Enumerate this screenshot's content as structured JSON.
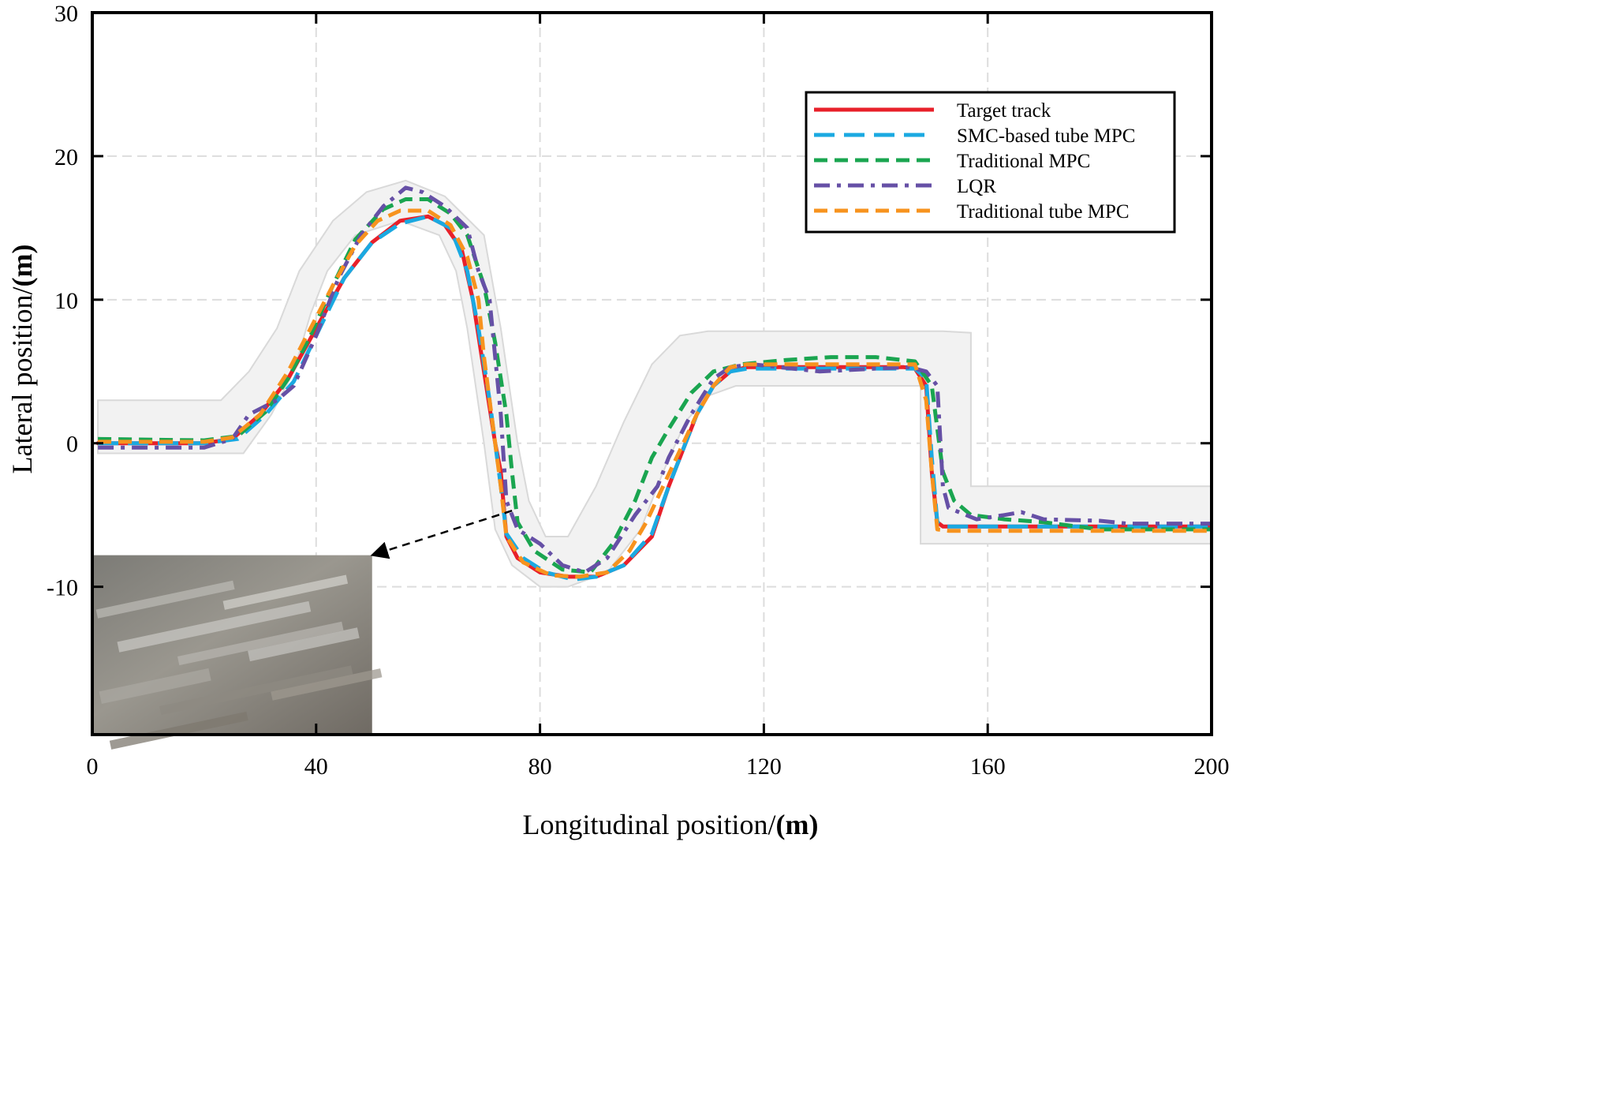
{
  "chart_data": {
    "type": "line",
    "title": "",
    "xlabel": "Longitudinal position/",
    "xlabel_unit": "(m)",
    "ylabel": "Lateral position/",
    "ylabel_unit": "(m)",
    "xlim": [
      0,
      200
    ],
    "ylim": [
      -20.3,
      30
    ],
    "xticks": [
      0,
      40,
      80,
      120,
      160,
      200
    ],
    "yticks": [
      -10,
      0,
      10,
      20,
      30
    ],
    "xtick_labels": [
      "0",
      "40",
      "80",
      "120",
      "160",
      "200"
    ],
    "ytick_labels": [
      "-10",
      "0",
      "10",
      "20",
      "30"
    ],
    "grid": true,
    "legend_position": "top-right",
    "road_band": {
      "color": "#f2f2f2",
      "edge_color": "#d9d9d9",
      "upper": [
        [
          1,
          3
        ],
        [
          23,
          3
        ],
        [
          28,
          5
        ],
        [
          33,
          8
        ],
        [
          37,
          12
        ],
        [
          43,
          15.5
        ],
        [
          49,
          17.5
        ],
        [
          56,
          18.3
        ],
        [
          63,
          17.2
        ],
        [
          70,
          14.5
        ],
        [
          73,
          8
        ],
        [
          76,
          0
        ],
        [
          78,
          -4
        ],
        [
          81,
          -6.5
        ],
        [
          85,
          -6.5
        ],
        [
          90,
          -3
        ],
        [
          95,
          1.5
        ],
        [
          100,
          5.5
        ],
        [
          105,
          7.5
        ],
        [
          110,
          7.8
        ],
        [
          152,
          7.8
        ],
        [
          157,
          7.7
        ],
        [
          157,
          -3
        ],
        [
          180,
          -3
        ],
        [
          209,
          -3
        ]
      ],
      "lower": [
        [
          1,
          -0.7
        ],
        [
          27,
          -0.7
        ],
        [
          32,
          2
        ],
        [
          36,
          5
        ],
        [
          39,
          9
        ],
        [
          42,
          12
        ],
        [
          47,
          14.5
        ],
        [
          55,
          15.5
        ],
        [
          62,
          14.5
        ],
        [
          65,
          12
        ],
        [
          67,
          8
        ],
        [
          70,
          0
        ],
        [
          72,
          -6
        ],
        [
          75,
          -8.5
        ],
        [
          80,
          -10
        ],
        [
          85,
          -10
        ],
        [
          92,
          -9
        ],
        [
          98,
          -6
        ],
        [
          102,
          -2
        ],
        [
          106,
          1.5
        ],
        [
          110,
          3.3
        ],
        [
          115,
          4
        ],
        [
          148,
          4
        ],
        [
          148,
          -7
        ],
        [
          180,
          -7
        ],
        [
          209,
          -7
        ]
      ]
    },
    "series": [
      {
        "name": "Target track",
        "color": "#e8202a",
        "dash": "solid",
        "points": [
          [
            1,
            0
          ],
          [
            20,
            0
          ],
          [
            25,
            0.3
          ],
          [
            30,
            2
          ],
          [
            35,
            4.5
          ],
          [
            40,
            8
          ],
          [
            45,
            11.5
          ],
          [
            50,
            14
          ],
          [
            55,
            15.5
          ],
          [
            60,
            15.8
          ],
          [
            63,
            15.2
          ],
          [
            66,
            13.5
          ],
          [
            68,
            10
          ],
          [
            70,
            5
          ],
          [
            72,
            0
          ],
          [
            73,
            -2
          ],
          [
            74,
            -6.5
          ],
          [
            76,
            -8
          ],
          [
            80,
            -9
          ],
          [
            85,
            -9.3
          ],
          [
            90,
            -9.3
          ],
          [
            95,
            -8.5
          ],
          [
            100,
            -6.5
          ],
          [
            103,
            -3
          ],
          [
            106,
            0
          ],
          [
            108,
            2
          ],
          [
            111,
            4
          ],
          [
            114,
            5
          ],
          [
            117,
            5.3
          ],
          [
            140,
            5.3
          ],
          [
            145,
            5.3
          ],
          [
            147,
            5.2
          ],
          [
            149,
            4
          ],
          [
            150,
            -2
          ],
          [
            151,
            -5.5
          ],
          [
            152,
            -5.8
          ],
          [
            170,
            -5.8
          ],
          [
            209,
            -5.8
          ]
        ]
      },
      {
        "name": "SMC-based tube MPC",
        "color": "#1aa9e1",
        "dash": "long",
        "points": [
          [
            1,
            0
          ],
          [
            20,
            0
          ],
          [
            26,
            0.3
          ],
          [
            31,
            2
          ],
          [
            36,
            4.3
          ],
          [
            40,
            7.5
          ],
          [
            45,
            11.5
          ],
          [
            50,
            14
          ],
          [
            55,
            15.3
          ],
          [
            60,
            15.8
          ],
          [
            64,
            15
          ],
          [
            67,
            12
          ],
          [
            69,
            8
          ],
          [
            71,
            3
          ],
          [
            72,
            0
          ],
          [
            73,
            -3
          ],
          [
            74,
            -6.3
          ],
          [
            77,
            -8
          ],
          [
            81,
            -9
          ],
          [
            86,
            -9.5
          ],
          [
            90,
            -9.3
          ],
          [
            95,
            -8.5
          ],
          [
            100,
            -6.3
          ],
          [
            103,
            -3
          ],
          [
            106,
            0
          ],
          [
            108,
            2
          ],
          [
            111,
            4
          ],
          [
            114,
            5
          ],
          [
            117,
            5.2
          ],
          [
            147,
            5.2
          ],
          [
            149,
            4.5
          ],
          [
            150,
            -1
          ],
          [
            151,
            -5.5
          ],
          [
            152,
            -5.8
          ],
          [
            209,
            -5.8
          ]
        ]
      },
      {
        "name": "Traditional MPC",
        "color": "#1aa550",
        "dash": "medium",
        "points": [
          [
            1,
            0.3
          ],
          [
            20,
            0.2
          ],
          [
            26,
            0.5
          ],
          [
            31,
            2.2
          ],
          [
            35,
            4.5
          ],
          [
            39,
            7.5
          ],
          [
            43,
            11
          ],
          [
            47,
            14.2
          ],
          [
            52,
            16.3
          ],
          [
            56,
            17
          ],
          [
            60,
            17
          ],
          [
            64,
            16
          ],
          [
            67,
            14.5
          ],
          [
            70,
            11
          ],
          [
            72,
            7
          ],
          [
            74,
            2
          ],
          [
            75,
            -2
          ],
          [
            76,
            -5.5
          ],
          [
            79,
            -7.5
          ],
          [
            84,
            -8.8
          ],
          [
            89,
            -9
          ],
          [
            93,
            -7
          ],
          [
            97,
            -4
          ],
          [
            100,
            -1
          ],
          [
            103,
            1
          ],
          [
            107,
            3.5
          ],
          [
            111,
            5
          ],
          [
            116,
            5.5
          ],
          [
            124,
            5.8
          ],
          [
            132,
            6
          ],
          [
            140,
            6
          ],
          [
            147,
            5.7
          ],
          [
            150,
            4
          ],
          [
            152,
            -2
          ],
          [
            154,
            -4
          ],
          [
            157,
            -5
          ],
          [
            163,
            -5.3
          ],
          [
            170,
            -5.5
          ],
          [
            180,
            -6
          ],
          [
            209,
            -6
          ]
        ]
      },
      {
        "name": "LQR",
        "color": "#6650a6",
        "dash": "dashdot",
        "points": [
          [
            1,
            -0.3
          ],
          [
            15,
            -0.3
          ],
          [
            20,
            -0.3
          ],
          [
            25,
            0.3
          ],
          [
            28,
            2
          ],
          [
            33,
            3
          ],
          [
            36,
            4
          ],
          [
            40,
            7.5
          ],
          [
            44,
            11.5
          ],
          [
            48,
            14.5
          ],
          [
            52,
            16.5
          ],
          [
            56,
            17.8
          ],
          [
            59,
            17.5
          ],
          [
            63,
            16.5
          ],
          [
            67,
            15
          ],
          [
            69,
            12
          ],
          [
            71,
            10
          ],
          [
            72,
            6
          ],
          [
            73,
            2
          ],
          [
            74,
            -4
          ],
          [
            76,
            -6
          ],
          [
            80,
            -7
          ],
          [
            84,
            -8.5
          ],
          [
            88,
            -9
          ],
          [
            92,
            -8
          ],
          [
            97,
            -5
          ],
          [
            101,
            -3
          ],
          [
            103,
            -1
          ],
          [
            107,
            2
          ],
          [
            111,
            4.5
          ],
          [
            114,
            5.3
          ],
          [
            118,
            5.5
          ],
          [
            130,
            5
          ],
          [
            140,
            5.2
          ],
          [
            146,
            5.3
          ],
          [
            149,
            5
          ],
          [
            151,
            4
          ],
          [
            152,
            -3
          ],
          [
            153,
            -4.5
          ],
          [
            158,
            -5.3
          ],
          [
            163,
            -5
          ],
          [
            166,
            -4.8
          ],
          [
            170,
            -5.3
          ],
          [
            180,
            -5.4
          ],
          [
            185,
            -5.6
          ],
          [
            209,
            -5.6
          ]
        ]
      },
      {
        "name": "Traditional tube MPC",
        "color": "#f7931e",
        "dash": "medium",
        "points": [
          [
            1,
            0.1
          ],
          [
            20,
            0.1
          ],
          [
            25,
            0.4
          ],
          [
            30,
            2
          ],
          [
            35,
            5
          ],
          [
            39,
            8
          ],
          [
            43,
            11
          ],
          [
            47,
            13.8
          ],
          [
            51,
            15.5
          ],
          [
            55,
            16.2
          ],
          [
            60,
            16.2
          ],
          [
            64,
            15.2
          ],
          [
            67,
            13
          ],
          [
            69,
            10
          ],
          [
            70,
            6
          ],
          [
            71,
            3
          ],
          [
            72,
            0
          ],
          [
            73,
            -3
          ],
          [
            74,
            -6.5
          ],
          [
            77,
            -8.3
          ],
          [
            82,
            -9.2
          ],
          [
            87,
            -9.3
          ],
          [
            92,
            -9
          ],
          [
            96,
            -7.5
          ],
          [
            99,
            -5.5
          ],
          [
            102,
            -3
          ],
          [
            105,
            -0.5
          ],
          [
            108,
            2
          ],
          [
            111,
            4
          ],
          [
            114,
            5.3
          ],
          [
            117,
            5.5
          ],
          [
            147,
            5.5
          ],
          [
            149,
            3
          ],
          [
            150,
            -2
          ],
          [
            151,
            -6
          ],
          [
            153,
            -6.1
          ],
          [
            209,
            -6.1
          ]
        ]
      }
    ],
    "annotation": {
      "type": "arrow",
      "from": [
        75,
        -4.7
      ],
      "to": [
        50,
        -7.8
      ],
      "inset_photo": {
        "x_range": [
          0,
          50
        ],
        "y_range": [
          -20.3,
          -7.8
        ]
      }
    }
  }
}
